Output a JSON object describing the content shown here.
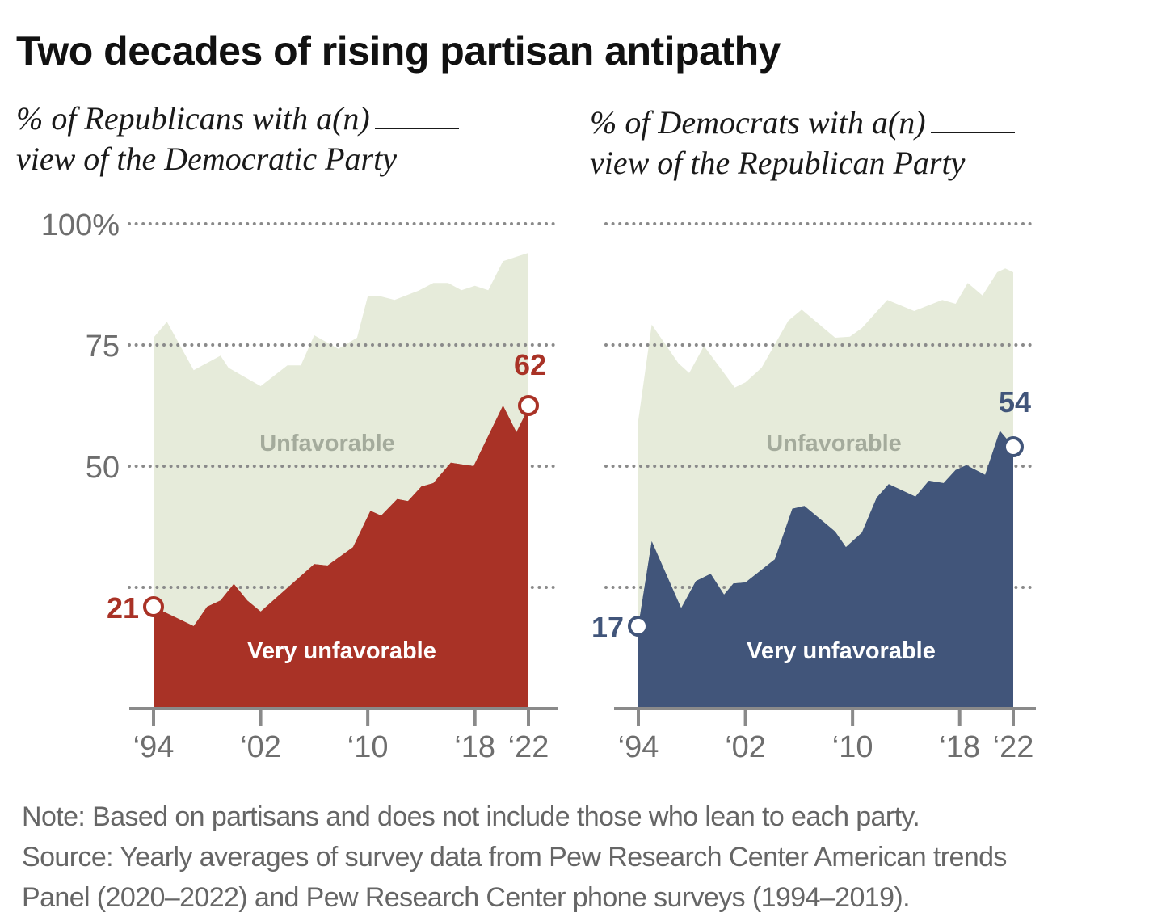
{
  "title": "Two decades of rising partisan antipathy",
  "colors": {
    "unfavorable_fill": "#e6ebda",
    "unfavorable_label": "#a4ab9c",
    "republican_red": "#a93226",
    "democrat_blue": "#41557a",
    "gridline": "#8a8a8a",
    "axis": "#8a8a8a",
    "tick_label": "#6e6e6e"
  },
  "notes": {
    "note": "Note: Based on partisans and does not include those who lean to each party.",
    "source_line1": "Source: Yearly averages of survey data from Pew Research Center American trends",
    "source_line2": "Panel (2020–2022) and Pew Research Center phone surveys (1994–2019)."
  },
  "chart_data": [
    {
      "type": "area",
      "id": "republicans",
      "title": "% of Republicans with a(n) _____ view of the Democratic Party",
      "subtitle_line1": "% of Republicans with a(n)",
      "subtitle_line2": "view of the Democratic Party",
      "xlabel": "",
      "ylabel": "",
      "xlim": [
        1994,
        2022
      ],
      "ylim": [
        0,
        100
      ],
      "yticks": [
        0,
        25,
        50,
        75,
        100
      ],
      "ytick_labels": [
        "",
        "",
        "50",
        "75",
        "100%"
      ],
      "xticks": [
        1994,
        2002,
        2010,
        2018,
        2022
      ],
      "xtick_labels": [
        "‘94",
        "‘02",
        "‘10",
        "‘18",
        "‘22"
      ],
      "grid": true,
      "series": [
        {
          "name": "Unfavorable",
          "color": "#e6ebda",
          "points": [
            [
              1994,
              76.5
            ],
            [
              1995,
              79.8
            ],
            [
              1997,
              69.8
            ],
            [
              1999,
              72.8
            ],
            [
              1999.6,
              70.3
            ],
            [
              2002,
              66.5
            ],
            [
              2004,
              70.8
            ],
            [
              2005,
              70.8
            ],
            [
              2006,
              77
            ],
            [
              2007.8,
              74.2
            ],
            [
              2009.2,
              76.5
            ],
            [
              2010,
              85
            ],
            [
              2011,
              85
            ],
            [
              2012,
              84.3
            ],
            [
              2013.8,
              86.2
            ],
            [
              2014.9,
              87.8
            ],
            [
              2016,
              87.8
            ],
            [
              2017,
              86.3
            ],
            [
              2018,
              87.2
            ],
            [
              2019,
              86.3
            ],
            [
              2020.1,
              92.3
            ],
            [
              2022,
              94
            ]
          ]
        },
        {
          "name": "Very unfavorable",
          "color": "#a93226",
          "points": [
            [
              1994,
              21
            ],
            [
              1997,
              17
            ],
            [
              1998,
              21
            ],
            [
              1999,
              22.3
            ],
            [
              2000,
              25.7
            ],
            [
              2001,
              22.3
            ],
            [
              2002,
              20
            ],
            [
              2006,
              29.8
            ],
            [
              2007,
              29.5
            ],
            [
              2008.9,
              33.3
            ],
            [
              2010.2,
              40.8
            ],
            [
              2011,
              39.8
            ],
            [
              2012.2,
              43.2
            ],
            [
              2013,
              42.8
            ],
            [
              2014,
              45.8
            ],
            [
              2014.9,
              46.5
            ],
            [
              2016.2,
              50.7
            ],
            [
              2017.9,
              50
            ],
            [
              2020.1,
              62.5
            ],
            [
              2021.1,
              57
            ],
            [
              2022,
              62
            ]
          ]
        }
      ],
      "annotations": [
        {
          "text": "Unfavorable",
          "series": "Unfavorable"
        },
        {
          "text": "Very unfavorable",
          "series": "Very unfavorable"
        },
        {
          "text": "21",
          "x": 1994,
          "y": 21,
          "marker": "open-circle"
        },
        {
          "text": "62",
          "x": 2022,
          "y": 62,
          "marker": "open-circle"
        }
      ]
    },
    {
      "type": "area",
      "id": "democrats",
      "title": "% of Democrats with a(n) _____ view of the Republican Party",
      "subtitle_line1": "% of Democrats with a(n)",
      "subtitle_line2": "view of the Republican Party",
      "xlabel": "",
      "ylabel": "",
      "xlim": [
        1994,
        2022
      ],
      "ylim": [
        0,
        100
      ],
      "yticks": [
        0,
        25,
        50,
        75,
        100
      ],
      "ytick_labels": [
        "",
        "",
        "",
        "",
        ""
      ],
      "xticks": [
        1994,
        2002,
        2010,
        2018,
        2022
      ],
      "xtick_labels": [
        "‘94",
        "‘02",
        "‘10",
        "‘18",
        "‘22"
      ],
      "grid": true,
      "series": [
        {
          "name": "Unfavorable",
          "color": "#e6ebda",
          "points": [
            [
              1994,
              59.5
            ],
            [
              1995,
              79.2
            ],
            [
              1997,
              71.2
            ],
            [
              1997.8,
              69.2
            ],
            [
              1998.9,
              74.8
            ],
            [
              2001.2,
              66.2
            ],
            [
              2002,
              67.3
            ],
            [
              2003.2,
              70.3
            ],
            [
              2005.2,
              80
            ],
            [
              2006.2,
              82.3
            ],
            [
              2008.7,
              76.5
            ],
            [
              2009.8,
              76.7
            ],
            [
              2010.7,
              78.5
            ],
            [
              2012.6,
              84.3
            ],
            [
              2014.6,
              82
            ],
            [
              2016.7,
              84.3
            ],
            [
              2017.7,
              83.5
            ],
            [
              2018.6,
              87.8
            ],
            [
              2019.7,
              85.2
            ],
            [
              2020.8,
              90
            ],
            [
              2021.4,
              90.8
            ],
            [
              2022,
              90
            ]
          ]
        },
        {
          "name": "Very unfavorable",
          "color": "#41557a",
          "points": [
            [
              1994,
              17
            ],
            [
              1995,
              34.5
            ],
            [
              1997.2,
              20.7
            ],
            [
              1998.3,
              26.3
            ],
            [
              1999.4,
              27.8
            ],
            [
              2000.4,
              23.5
            ],
            [
              2001.1,
              25.8
            ],
            [
              2002,
              26
            ],
            [
              2004.2,
              30.8
            ],
            [
              2005.5,
              41.2
            ],
            [
              2006.4,
              41.8
            ],
            [
              2008.7,
              36.5
            ],
            [
              2009.5,
              33.3
            ],
            [
              2010.7,
              36.3
            ],
            [
              2011.8,
              43.5
            ],
            [
              2012.7,
              46.3
            ],
            [
              2014.7,
              43.7
            ],
            [
              2015.7,
              47
            ],
            [
              2016.8,
              46.5
            ],
            [
              2017.7,
              49.2
            ],
            [
              2018.5,
              50.2
            ],
            [
              2019.9,
              48.2
            ],
            [
              2021,
              57.3
            ],
            [
              2022,
              54
            ]
          ]
        }
      ],
      "annotations": [
        {
          "text": "Unfavorable",
          "series": "Unfavorable"
        },
        {
          "text": "Very unfavorable",
          "series": "Very unfavorable"
        },
        {
          "text": "17",
          "x": 1994,
          "y": 17,
          "marker": "open-circle"
        },
        {
          "text": "54",
          "x": 2022,
          "y": 54,
          "marker": "open-circle"
        }
      ]
    }
  ]
}
